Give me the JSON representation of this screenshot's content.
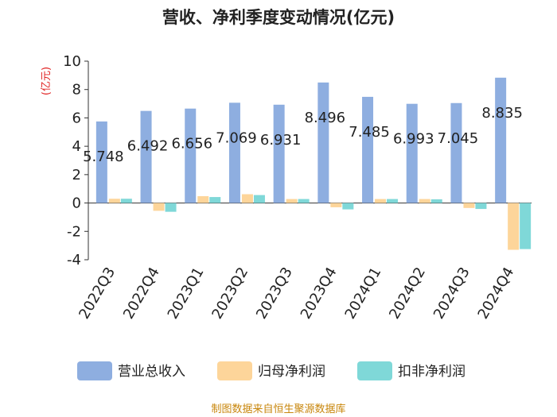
{
  "title": "营收、净利季度变动情况(亿元)",
  "source": "制图数据来自恒生聚源数据库",
  "chart_data": {
    "type": "bar",
    "title": "营收、净利季度变动情况(亿元)",
    "ylabel": "(亿元)",
    "xlabel": "",
    "ylim": [
      -4,
      10
    ],
    "yticks": [
      -4,
      -2,
      0,
      2,
      4,
      6,
      8,
      10
    ],
    "grid": false,
    "legend_position": "bottom",
    "categories": [
      "2022Q3",
      "2022Q4",
      "2023Q1",
      "2023Q2",
      "2023Q3",
      "2023Q4",
      "2024Q1",
      "2024Q2",
      "2024Q3",
      "2024Q4"
    ],
    "series": [
      {
        "name": "营业总收入",
        "color": "#8eaee0",
        "values": [
          5.748,
          6.492,
          6.656,
          7.069,
          6.931,
          8.496,
          7.485,
          6.993,
          7.045,
          8.835
        ]
      },
      {
        "name": "归母净利润",
        "color": "#fdd59a",
        "values": [
          0.3,
          -0.55,
          0.48,
          0.62,
          0.28,
          -0.3,
          0.28,
          0.28,
          -0.35,
          -3.3
        ]
      },
      {
        "name": "扣非净利润",
        "color": "#7fd8d8",
        "values": [
          0.3,
          -0.62,
          0.42,
          0.56,
          0.28,
          -0.45,
          0.28,
          0.26,
          -0.42,
          -3.25
        ]
      }
    ],
    "data_labels": [
      "5.748",
      "6.492",
      "6.656",
      "7.069",
      "6.931",
      "8.496",
      "7.485",
      "6.993",
      "7.045",
      "8.835"
    ]
  }
}
